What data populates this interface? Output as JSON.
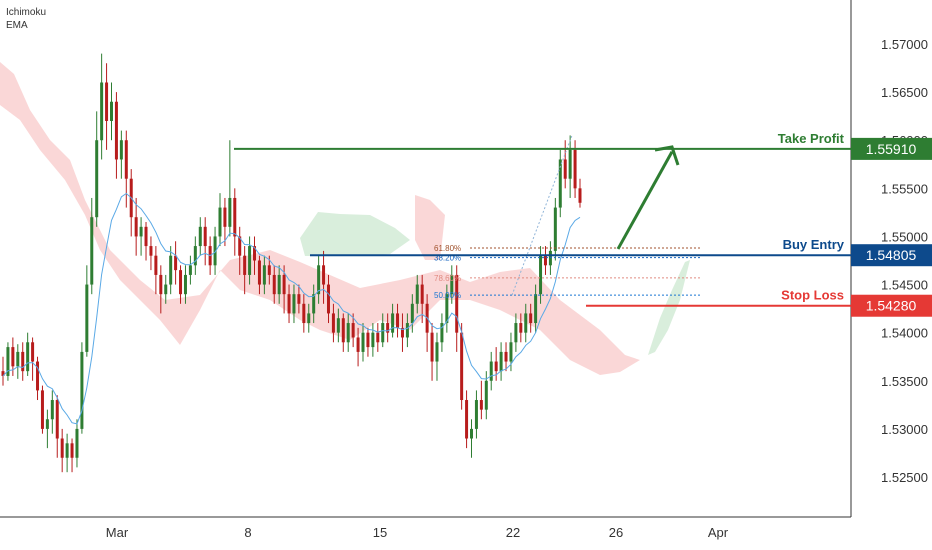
{
  "indicators": [
    "Ichimoku",
    "EMA"
  ],
  "colors": {
    "bull": "#2e7d32",
    "bear": "#b71c1c",
    "ema": "#5aa9e6",
    "cloud_bear": "#f9d0d0",
    "cloud_bull": "#d5ecd8",
    "take_profit": "#2e7d32",
    "buy_entry": "#0d4a8c",
    "stop_loss": "#e53935",
    "fib_618": "#a0522d",
    "fib_382": "#1565c0",
    "fib_786": "#e08a80",
    "fib_50": "#1976d2"
  },
  "chart_data": {
    "type": "candlestick",
    "y_axis": {
      "range": [
        1.521,
        1.5765
      ],
      "ticks": [
        "1.57000",
        "1.56500",
        "1.56000",
        "1.55500",
        "1.55000",
        "1.54500",
        "1.54000",
        "1.53500",
        "1.53000",
        "1.52500"
      ]
    },
    "x_axis": {
      "ticks": [
        "Mar",
        "8",
        "15",
        "22",
        "26",
        "Apr"
      ]
    },
    "levels": [
      {
        "name": "Take Profit",
        "value": "1.55910"
      },
      {
        "name": "Buy Entry",
        "value": "1.54805"
      },
      {
        "name": "Stop Loss",
        "value": "1.54280"
      }
    ],
    "fib_levels": [
      {
        "label": "61.80%",
        "value": 1.5488
      },
      {
        "label": "38.20%",
        "value": 1.5478
      },
      {
        "label": "78.60%",
        "value": 1.5457
      },
      {
        "label": "50.00%",
        "value": 1.5439
      }
    ],
    "candles": [
      [
        1.536,
        1.5355,
        1.5375,
        1.5345
      ],
      [
        1.5355,
        1.5385,
        1.539,
        1.535
      ],
      [
        1.5385,
        1.5365,
        1.5395,
        1.5355
      ],
      [
        1.5365,
        1.538,
        1.5388,
        1.5352
      ],
      [
        1.538,
        1.536,
        1.539,
        1.535
      ],
      [
        1.536,
        1.539,
        1.54,
        1.5355
      ],
      [
        1.539,
        1.537,
        1.5395,
        1.535
      ],
      [
        1.537,
        1.534,
        1.5375,
        1.533
      ],
      [
        1.534,
        1.53,
        1.5345,
        1.5295
      ],
      [
        1.53,
        1.531,
        1.532,
        1.528
      ],
      [
        1.531,
        1.533,
        1.534,
        1.5295
      ],
      [
        1.533,
        1.529,
        1.5335,
        1.527
      ],
      [
        1.529,
        1.527,
        1.53,
        1.5255
      ],
      [
        1.527,
        1.5285,
        1.5295,
        1.5255
      ],
      [
        1.5285,
        1.527,
        1.529,
        1.5255
      ],
      [
        1.527,
        1.53,
        1.531,
        1.526
      ],
      [
        1.53,
        1.538,
        1.539,
        1.5295
      ],
      [
        1.538,
        1.545,
        1.547,
        1.5375
      ],
      [
        1.545,
        1.552,
        1.554,
        1.544
      ],
      [
        1.552,
        1.56,
        1.563,
        1.551
      ],
      [
        1.56,
        1.566,
        1.569,
        1.558
      ],
      [
        1.566,
        1.562,
        1.568,
        1.559
      ],
      [
        1.562,
        1.564,
        1.566,
        1.56
      ],
      [
        1.564,
        1.558,
        1.565,
        1.556
      ],
      [
        1.558,
        1.56,
        1.561,
        1.556
      ],
      [
        1.56,
        1.556,
        1.561,
        1.553
      ],
      [
        1.556,
        1.552,
        1.557,
        1.55
      ],
      [
        1.552,
        1.55,
        1.554,
        1.548
      ],
      [
        1.55,
        1.551,
        1.552,
        1.548
      ],
      [
        1.551,
        1.549,
        1.5515,
        1.5475
      ],
      [
        1.549,
        1.548,
        1.55,
        1.5465
      ],
      [
        1.548,
        1.546,
        1.549,
        1.544
      ],
      [
        1.546,
        1.544,
        1.547,
        1.542
      ],
      [
        1.544,
        1.545,
        1.546,
        1.543
      ],
      [
        1.545,
        1.548,
        1.549,
        1.544
      ],
      [
        1.548,
        1.5465,
        1.5495,
        1.545
      ],
      [
        1.5465,
        1.544,
        1.547,
        1.543
      ],
      [
        1.544,
        1.546,
        1.547,
        1.543
      ],
      [
        1.546,
        1.547,
        1.548,
        1.545
      ],
      [
        1.547,
        1.549,
        1.55,
        1.546
      ],
      [
        1.549,
        1.551,
        1.552,
        1.548
      ],
      [
        1.551,
        1.549,
        1.552,
        1.547
      ],
      [
        1.549,
        1.547,
        1.55,
        1.546
      ],
      [
        1.547,
        1.55,
        1.551,
        1.546
      ],
      [
        1.55,
        1.553,
        1.5545,
        1.549
      ],
      [
        1.553,
        1.551,
        1.554,
        1.549
      ],
      [
        1.551,
        1.554,
        1.56,
        1.55
      ],
      [
        1.554,
        1.55,
        1.555,
        1.548
      ],
      [
        1.55,
        1.548,
        1.551,
        1.546
      ],
      [
        1.548,
        1.546,
        1.549,
        1.544
      ],
      [
        1.546,
        1.549,
        1.55,
        1.545
      ],
      [
        1.549,
        1.5475,
        1.55,
        1.546
      ],
      [
        1.5475,
        1.545,
        1.548,
        1.544
      ],
      [
        1.545,
        1.547,
        1.548,
        1.544
      ],
      [
        1.547,
        1.546,
        1.548,
        1.545
      ],
      [
        1.546,
        1.544,
        1.547,
        1.543
      ],
      [
        1.544,
        1.546,
        1.547,
        1.543
      ],
      [
        1.546,
        1.544,
        1.547,
        1.542
      ],
      [
        1.544,
        1.542,
        1.545,
        1.541
      ],
      [
        1.542,
        1.544,
        1.545,
        1.541
      ],
      [
        1.544,
        1.543,
        1.545,
        1.542
      ],
      [
        1.543,
        1.541,
        1.544,
        1.54
      ],
      [
        1.541,
        1.542,
        1.543,
        1.54
      ],
      [
        1.542,
        1.544,
        1.545,
        1.541
      ],
      [
        1.544,
        1.547,
        1.548,
        1.543
      ],
      [
        1.547,
        1.545,
        1.5485,
        1.543
      ],
      [
        1.545,
        1.542,
        1.546,
        1.541
      ],
      [
        1.542,
        1.54,
        1.543,
        1.539
      ],
      [
        1.54,
        1.5415,
        1.5425,
        1.539
      ],
      [
        1.5415,
        1.539,
        1.542,
        1.538
      ],
      [
        1.539,
        1.541,
        1.542,
        1.538
      ],
      [
        1.541,
        1.5395,
        1.542,
        1.5385
      ],
      [
        1.5395,
        1.538,
        1.5405,
        1.5365
      ],
      [
        1.538,
        1.54,
        1.541,
        1.537
      ],
      [
        1.54,
        1.5385,
        1.5405,
        1.5375
      ],
      [
        1.5385,
        1.54,
        1.541,
        1.5375
      ],
      [
        1.54,
        1.539,
        1.541,
        1.538
      ],
      [
        1.539,
        1.541,
        1.542,
        1.5385
      ],
      [
        1.541,
        1.54,
        1.542,
        1.539
      ],
      [
        1.54,
        1.542,
        1.543,
        1.5395
      ],
      [
        1.542,
        1.5405,
        1.543,
        1.5395
      ],
      [
        1.5405,
        1.5395,
        1.542,
        1.538
      ],
      [
        1.5395,
        1.541,
        1.542,
        1.5385
      ],
      [
        1.541,
        1.543,
        1.544,
        1.54
      ],
      [
        1.543,
        1.545,
        1.546,
        1.542
      ],
      [
        1.545,
        1.543,
        1.546,
        1.541
      ],
      [
        1.543,
        1.54,
        1.544,
        1.538
      ],
      [
        1.54,
        1.537,
        1.541,
        1.535
      ],
      [
        1.537,
        1.539,
        1.54,
        1.535
      ],
      [
        1.539,
        1.541,
        1.542,
        1.538
      ],
      [
        1.541,
        1.544,
        1.545,
        1.54
      ],
      [
        1.544,
        1.546,
        1.547,
        1.543
      ],
      [
        1.546,
        1.54,
        1.547,
        1.538
      ],
      [
        1.54,
        1.533,
        1.541,
        1.532
      ],
      [
        1.533,
        1.529,
        1.534,
        1.528
      ],
      [
        1.529,
        1.53,
        1.531,
        1.527
      ],
      [
        1.53,
        1.533,
        1.534,
        1.529
      ],
      [
        1.533,
        1.532,
        1.535,
        1.531
      ],
      [
        1.532,
        1.535,
        1.536,
        1.531
      ],
      [
        1.535,
        1.537,
        1.538,
        1.534
      ],
      [
        1.537,
        1.536,
        1.5385,
        1.535
      ],
      [
        1.536,
        1.538,
        1.539,
        1.535
      ],
      [
        1.538,
        1.537,
        1.539,
        1.536
      ],
      [
        1.537,
        1.539,
        1.54,
        1.536
      ],
      [
        1.539,
        1.541,
        1.542,
        1.538
      ],
      [
        1.541,
        1.54,
        1.542,
        1.539
      ],
      [
        1.54,
        1.542,
        1.543,
        1.539
      ],
      [
        1.542,
        1.541,
        1.543,
        1.54
      ],
      [
        1.541,
        1.544,
        1.545,
        1.54
      ],
      [
        1.544,
        1.548,
        1.549,
        1.543
      ],
      [
        1.548,
        1.547,
        1.549,
        1.546
      ],
      [
        1.547,
        1.5485,
        1.5495,
        1.546
      ],
      [
        1.5485,
        1.553,
        1.554,
        1.5475
      ],
      [
        1.553,
        1.558,
        1.559,
        1.552
      ],
      [
        1.558,
        1.556,
        1.56,
        1.555
      ],
      [
        1.556,
        1.559,
        1.5605,
        1.554
      ],
      [
        1.559,
        1.555,
        1.56,
        1.554
      ],
      [
        1.555,
        1.5535,
        1.556,
        1.553
      ]
    ]
  }
}
